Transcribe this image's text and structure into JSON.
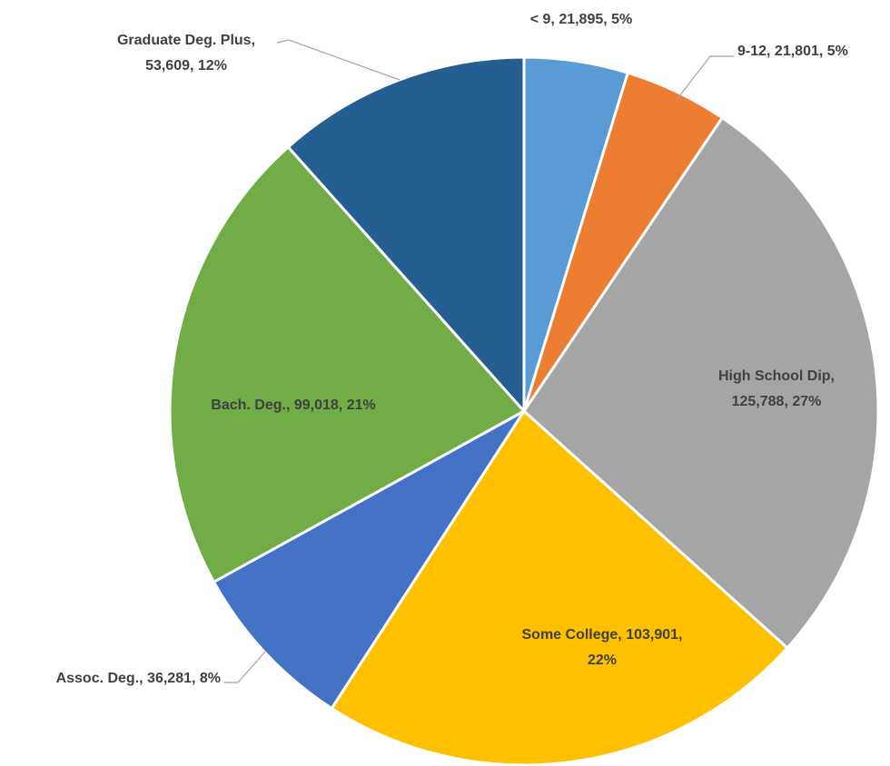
{
  "chart_data": {
    "type": "pie",
    "categories": [
      "< 9",
      "9-12",
      "High School Dip",
      "Some College",
      "Assoc. Deg.",
      "Bach. Deg.",
      "Graduate Deg. Plus"
    ],
    "values": [
      21895,
      21801,
      125788,
      103901,
      36281,
      99018,
      53609
    ],
    "value_labels": [
      "21,895",
      "21,801",
      "125,788",
      "103,901",
      "36,281",
      "99,018",
      "53,609"
    ],
    "percent_labels": [
      "5%",
      "5%",
      "27%",
      "22%",
      "8%",
      "21%",
      "12%"
    ],
    "colors": [
      "#5b9bd5",
      "#ed7d31",
      "#a5a5a5",
      "#ffc000",
      "#4472c4",
      "#70ad47",
      "#255e91"
    ]
  }
}
